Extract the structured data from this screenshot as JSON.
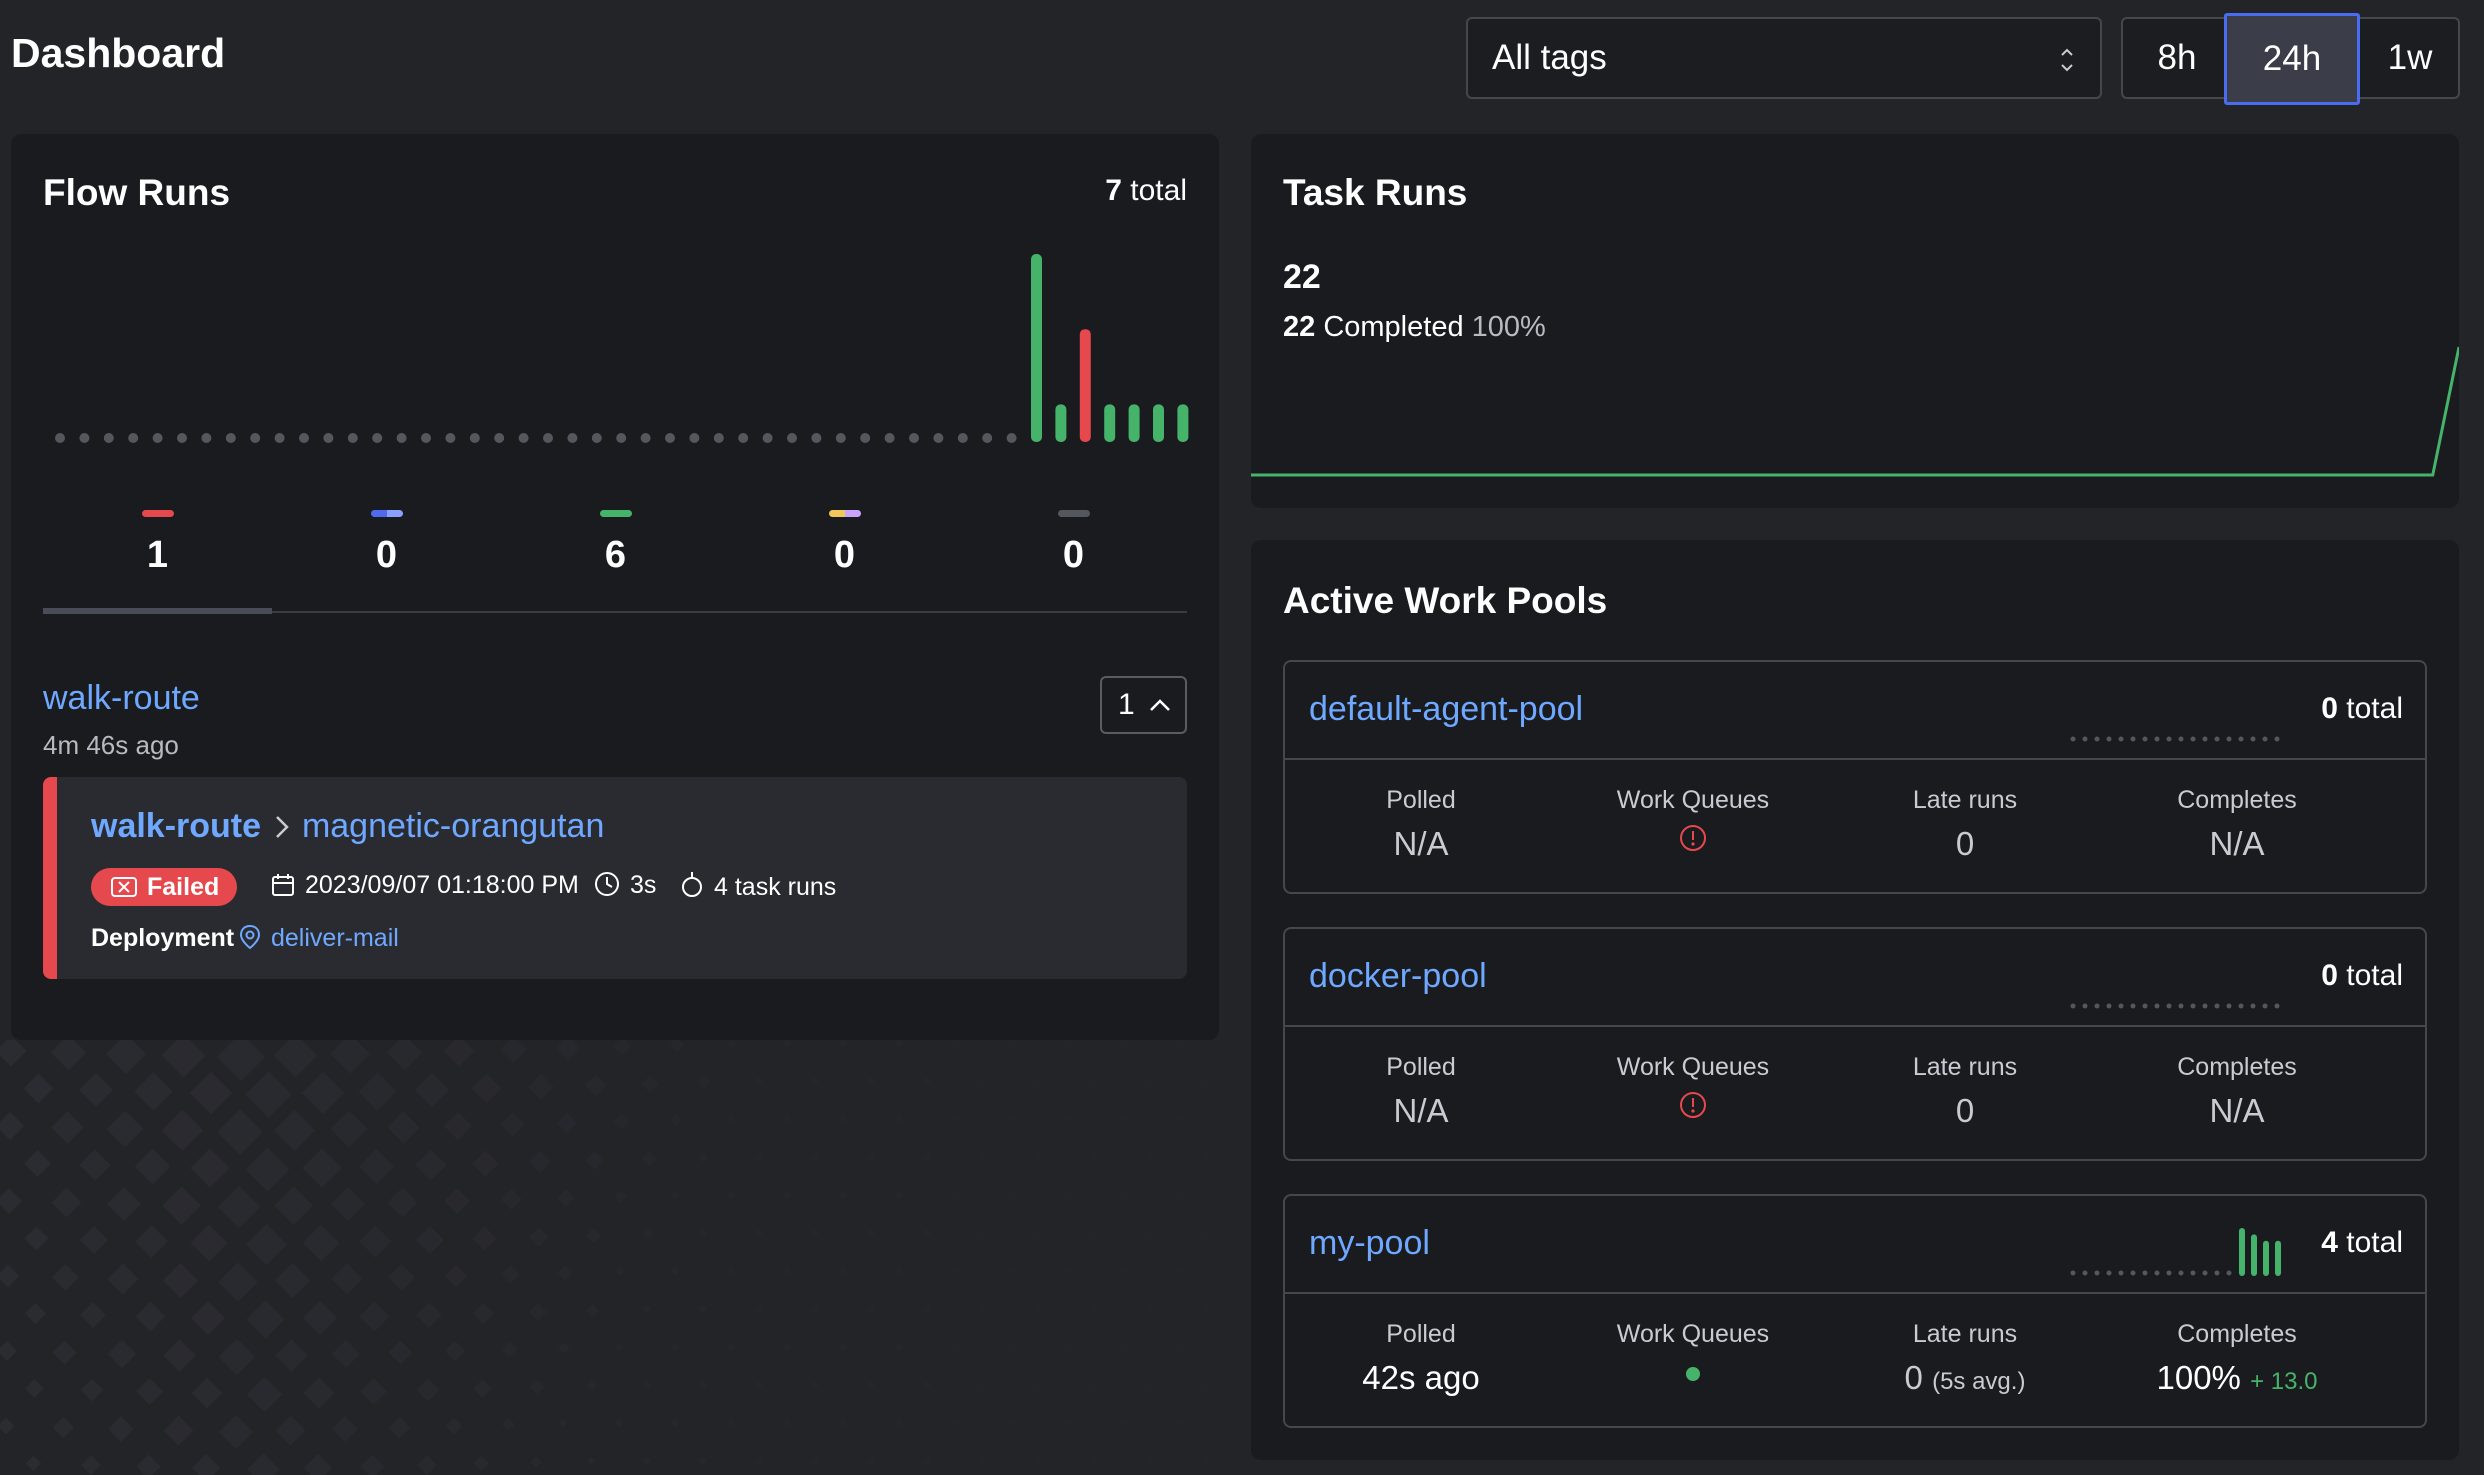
{
  "header": {
    "title": "Dashboard",
    "tag_filter": "All tags",
    "ranges": [
      "8h",
      "24h",
      "1w"
    ],
    "selected_range": "24h"
  },
  "flow_runs": {
    "title": "Flow Runs",
    "total_count": "7",
    "total_label": "total",
    "chart_data": {
      "type": "bar",
      "values": [
        0,
        0,
        0,
        0,
        0,
        0,
        0,
        0,
        0,
        0,
        0,
        0,
        0,
        0,
        0,
        0,
        0,
        0,
        0,
        0,
        0,
        0,
        0,
        0,
        0,
        0,
        0,
        0,
        0,
        0,
        0,
        0,
        0,
        0,
        0,
        0,
        0,
        0,
        0,
        0,
        5,
        1,
        3,
        1,
        1,
        1,
        1
      ],
      "statuses": [
        "none",
        "none",
        "none",
        "none",
        "none",
        "none",
        "none",
        "none",
        "none",
        "none",
        "none",
        "none",
        "none",
        "none",
        "none",
        "none",
        "none",
        "none",
        "none",
        "none",
        "none",
        "none",
        "none",
        "none",
        "none",
        "none",
        "none",
        "none",
        "none",
        "none",
        "none",
        "none",
        "none",
        "none",
        "none",
        "none",
        "none",
        "none",
        "none",
        "none",
        "completed",
        "completed",
        "failed",
        "completed",
        "completed",
        "completed",
        "completed"
      ]
    },
    "states": [
      {
        "name": "failed",
        "count": "1",
        "color": "#e5484d"
      },
      {
        "name": "running",
        "count": "0",
        "color": "#4f6bed"
      },
      {
        "name": "completed",
        "count": "6",
        "color": "#46b36a"
      },
      {
        "name": "scheduled",
        "count": "0",
        "color": "#f1c75b"
      },
      {
        "name": "cancelled",
        "count": "0",
        "color": "#55575e"
      }
    ],
    "group": {
      "name": "walk-route",
      "ago": "4m 46s ago",
      "count": "1"
    },
    "run": {
      "flow": "walk-route",
      "run_name": "magnetic-orangutan",
      "state": "Failed",
      "start_time": "2023/09/07 01:18:00 PM",
      "duration": "3s",
      "task_runs": "4 task runs",
      "deployment_label": "Deployment",
      "deployment": "deliver-mail"
    }
  },
  "task_runs": {
    "title": "Task Runs",
    "count": "22",
    "completed_count": "22",
    "completed_label": "Completed",
    "completed_pct": "100%",
    "chart_data": {
      "type": "line",
      "values": [
        0,
        0,
        0,
        0,
        0,
        0,
        0,
        0,
        0,
        0,
        0,
        0,
        0,
        0,
        0,
        0,
        0,
        0,
        0,
        0,
        0,
        0,
        0,
        0,
        0,
        0,
        0,
        0,
        0,
        0,
        0,
        0,
        0,
        0,
        0,
        0,
        0,
        0,
        0,
        0,
        0,
        0,
        0,
        0,
        0,
        0,
        22
      ]
    }
  },
  "work_pools": {
    "title": "Active Work Pools",
    "labels": {
      "polled": "Polled",
      "queues": "Work Queues",
      "late": "Late runs",
      "completes": "Completes"
    },
    "pools": [
      {
        "name": "default-agent-pool",
        "total_count": "0",
        "total_label": "total",
        "polled": "N/A",
        "queues_status": "error",
        "late": "0",
        "late_avg": "",
        "completes": "N/A",
        "completes_delta": "",
        "spark": [
          0,
          0,
          0,
          0,
          0,
          0,
          0,
          0,
          0,
          0,
          0,
          0,
          0,
          0,
          0,
          0,
          0,
          0
        ]
      },
      {
        "name": "docker-pool",
        "total_count": "0",
        "total_label": "total",
        "polled": "N/A",
        "queues_status": "error",
        "late": "0",
        "late_avg": "",
        "completes": "N/A",
        "completes_delta": "",
        "spark": [
          0,
          0,
          0,
          0,
          0,
          0,
          0,
          0,
          0,
          0,
          0,
          0,
          0,
          0,
          0,
          0,
          0,
          0
        ]
      },
      {
        "name": "my-pool",
        "total_count": "4",
        "total_label": "total",
        "polled": "42s ago",
        "queues_status": "ready",
        "late": "0",
        "late_avg": "(5s avg.)",
        "completes": "100%",
        "completes_delta": "+ 13.0",
        "spark": [
          0,
          0,
          0,
          0,
          0,
          0,
          0,
          0,
          0,
          0,
          0,
          0,
          0,
          0,
          5,
          4,
          3,
          3
        ]
      }
    ]
  },
  "colors": {
    "accent": "#6ea8ff",
    "failed": "#e5484d",
    "completed": "#46b36a",
    "active_range": "#4a6cf0"
  }
}
